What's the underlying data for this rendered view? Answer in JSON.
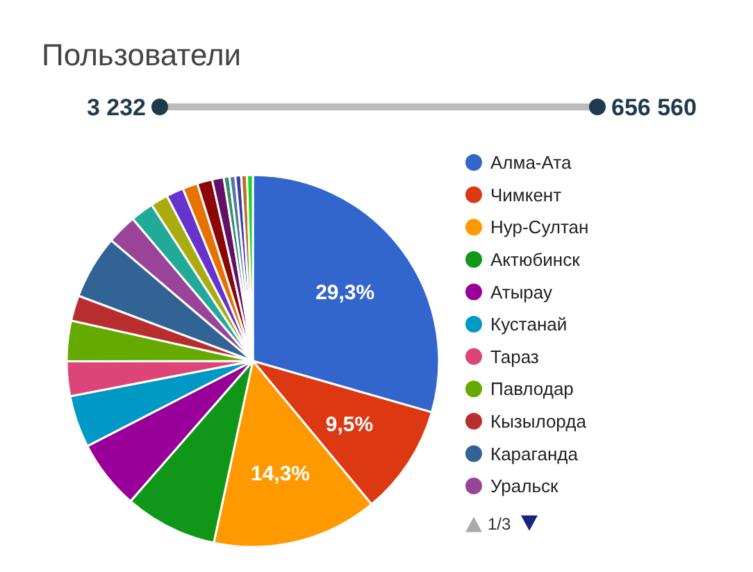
{
  "chart_data": {
    "type": "pie",
    "title": "Пользователи",
    "categories": [
      "Алма-Ата",
      "Чимкент",
      "Нур-Султан",
      "Актюбинск",
      "Атырау",
      "Кустанай",
      "Тараз",
      "Павлодар",
      "Кызылорда",
      "Караганда",
      "Уральск",
      null,
      null,
      null,
      null,
      null,
      null,
      null,
      null,
      null,
      null,
      null
    ],
    "values": [
      29.3,
      9.5,
      14.3,
      8,
      6,
      4.5,
      3,
      3.5,
      2.2,
      5.5,
      2.6,
      2,
      1.5,
      1.5,
      1.3,
      1.3,
      1,
      0.5,
      0.5,
      0.5,
      0.5,
      0.5
    ],
    "value_labels": [
      "29,3%",
      "9,5%",
      "14,3%",
      null,
      null,
      null,
      null,
      null,
      null,
      null,
      null,
      null,
      null,
      null,
      null,
      null,
      null,
      null,
      null,
      null,
      null,
      null
    ],
    "colors": [
      "#3366cc",
      "#dc3912",
      "#ff9900",
      "#109618",
      "#990099",
      "#0099c6",
      "#dd4477",
      "#66aa00",
      "#b82e2e",
      "#316395",
      "#994499",
      "#22aa99",
      "#aaaa11",
      "#6633cc",
      "#e67300",
      "#8b0707",
      "#651067",
      "#329262",
      "#5574a6",
      "#3b3eac",
      "#b77322",
      "#16d620"
    ],
    "legend": "right",
    "annotations": [
      "3 232",
      "656 560",
      "1/3"
    ]
  }
}
